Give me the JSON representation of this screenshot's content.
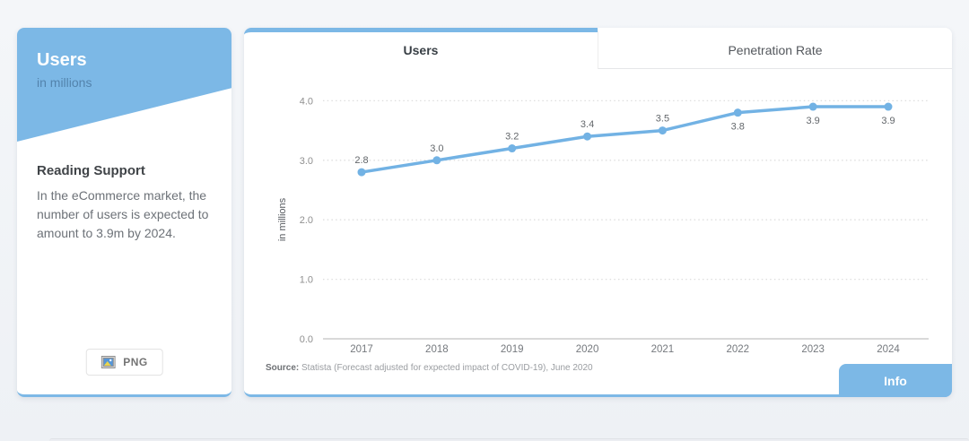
{
  "colors": {
    "accent": "#7cb8e6",
    "line": "#72b2e4",
    "page_bg": "#f1f3f7"
  },
  "sidebar_card": {
    "title": "Users",
    "subtitle": "in millions",
    "heading": "Reading Support",
    "body": "In the eCommerce market, the number of users is expected to amount to 3.9m by 2024.",
    "download_label": "PNG"
  },
  "chart_card": {
    "tabs": [
      {
        "label": "Users",
        "active": true
      },
      {
        "label": "Penetration Rate",
        "active": false
      }
    ],
    "source_prefix": "Source:",
    "source_text": " Statista (Forecast adjusted for expected impact of COVID-19), June 2020",
    "info_label": "Info"
  },
  "chart_data": {
    "type": "line",
    "title": "Users",
    "categories": [
      "2017",
      "2018",
      "2019",
      "2020",
      "2021",
      "2022",
      "2023",
      "2024"
    ],
    "values": [
      2.8,
      3.0,
      3.2,
      3.4,
      3.5,
      3.8,
      3.9,
      3.9
    ],
    "label_positions": [
      "above",
      "above",
      "above",
      "above",
      "above",
      "below",
      "below",
      "below"
    ],
    "xlabel": "",
    "ylabel": "in millions",
    "yticks": [
      0.0,
      1.0,
      2.0,
      3.0,
      4.0
    ],
    "ylim": [
      0,
      4.0
    ],
    "grid": "dotted-horizontal",
    "legend": "none",
    "line_color": "#72b2e4",
    "marker": "circle"
  }
}
